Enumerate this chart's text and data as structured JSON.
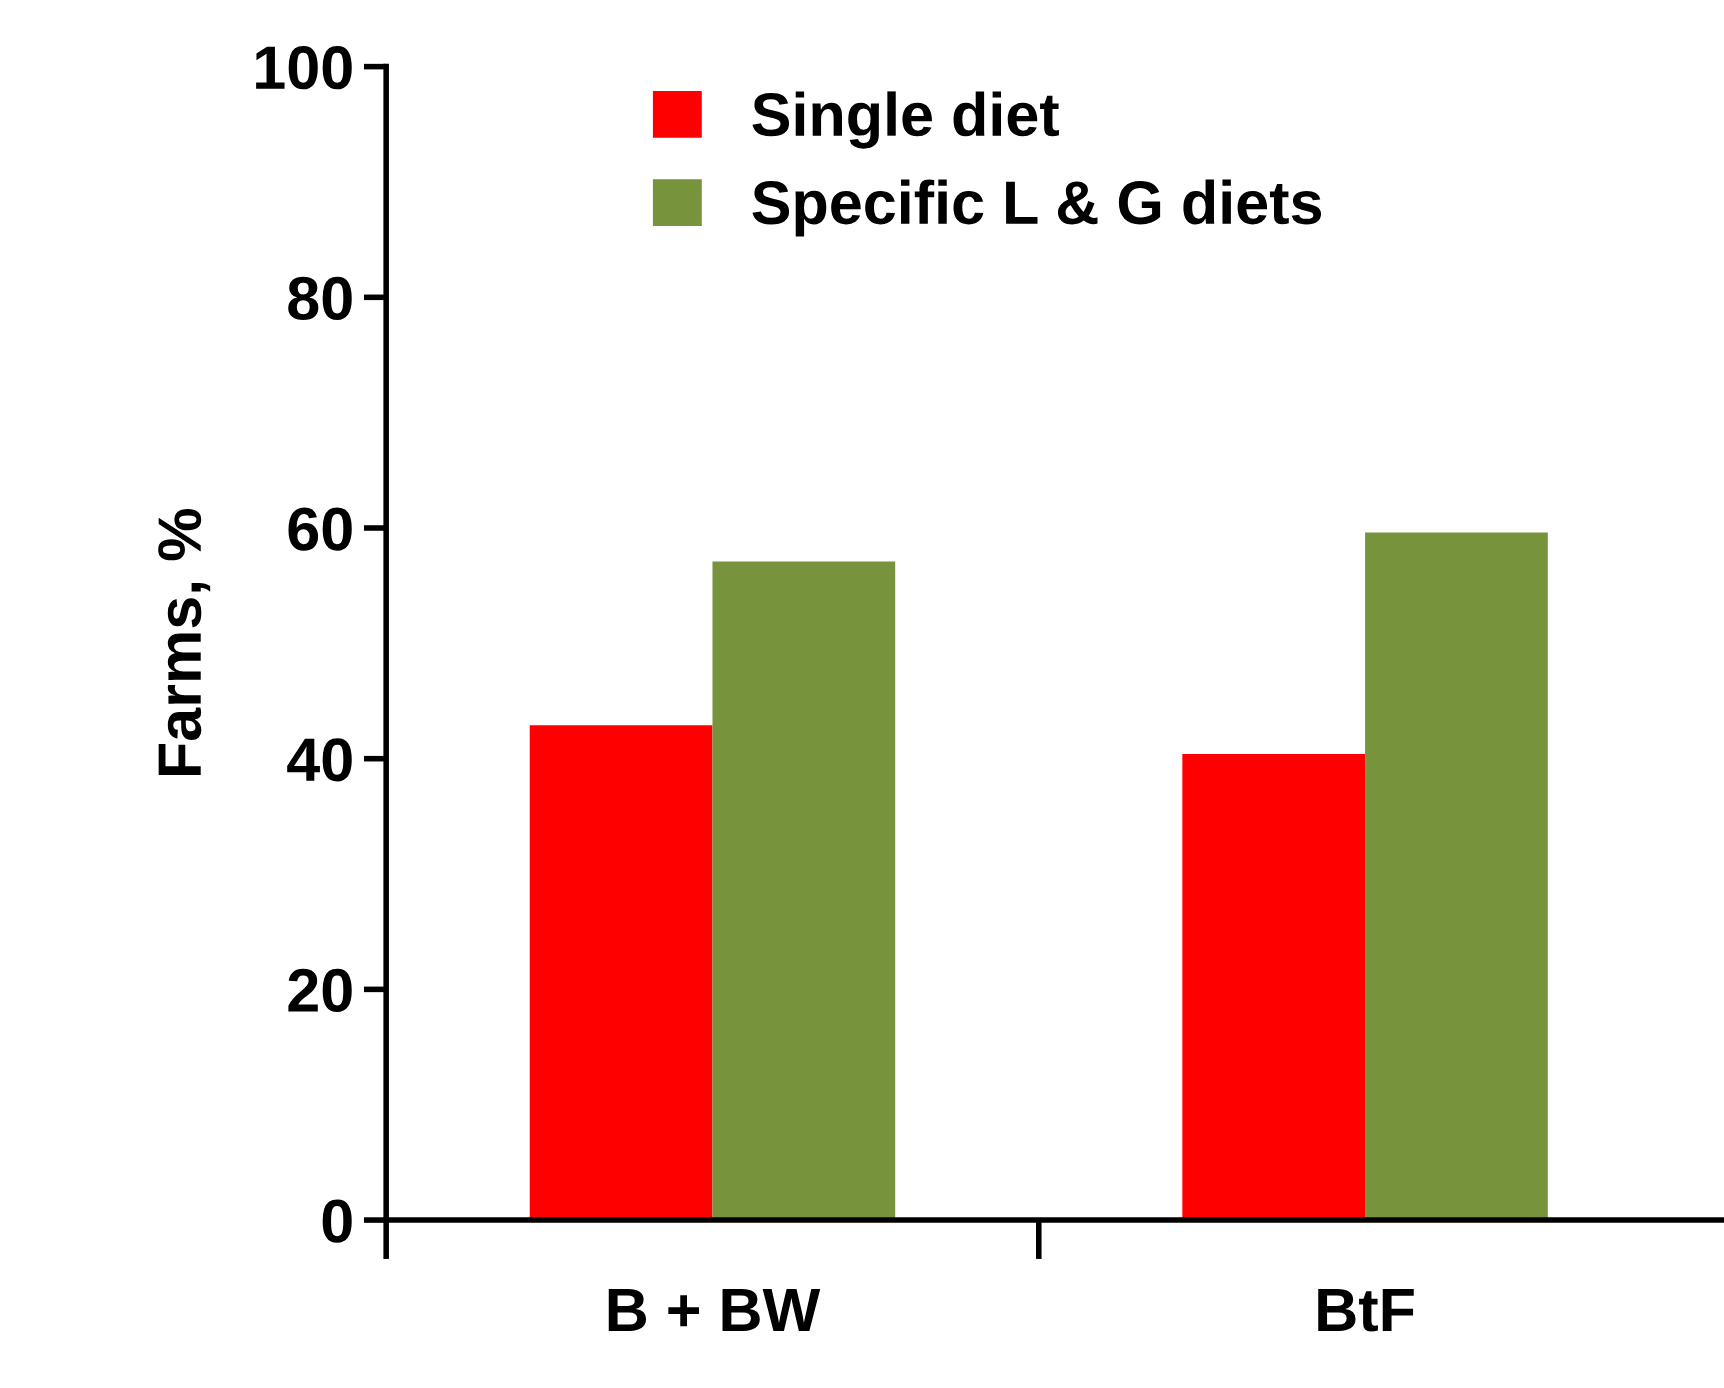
{
  "chart_data": {
    "type": "bar",
    "ylabel": "Farms, %",
    "categories": [
      "B + BW",
      "BtF"
    ],
    "series": [
      {
        "name": "Single diet",
        "color": "#ff0000",
        "values": [
          42.9,
          40.4
        ]
      },
      {
        "name": "Specific L & G diets",
        "color": "#77933c",
        "values": [
          57.1,
          59.6
        ]
      }
    ],
    "ylim": [
      0,
      100
    ],
    "yticks": [
      0,
      20,
      40,
      60,
      80,
      100
    ],
    "grid": false,
    "legend": "top"
  }
}
